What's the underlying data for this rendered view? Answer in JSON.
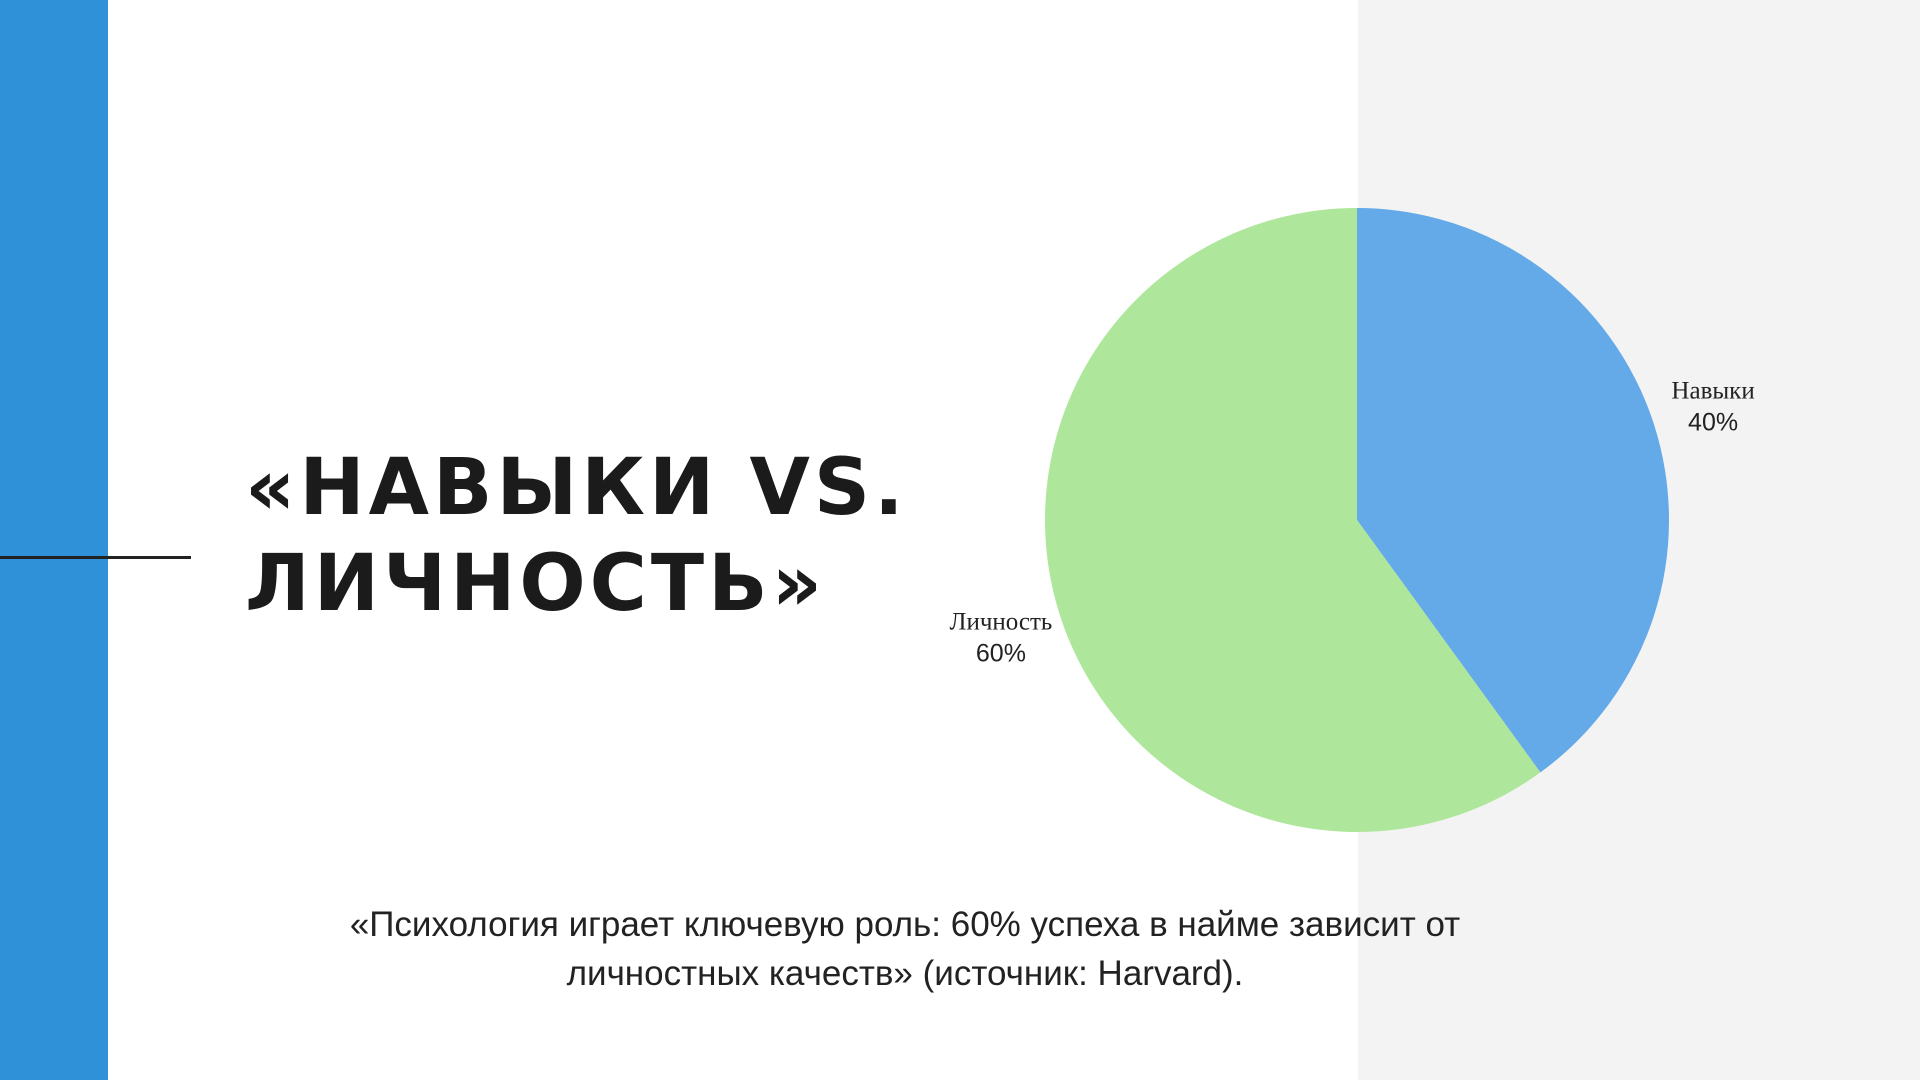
{
  "chart_data": {
    "type": "pie",
    "title": "«НАВЫКИ VS. ЛИЧНОСТЬ»",
    "caption": "«Психология играет ключевую роль: 60% успеха в найме зависит от личностных качеств» (источник: Harvard).",
    "categories": [
      "Навыки",
      "Личность"
    ],
    "values": [
      40,
      60
    ],
    "value_labels": [
      "40%",
      "60%"
    ],
    "colors": [
      "#64a9e8",
      "#aee79b"
    ]
  }
}
